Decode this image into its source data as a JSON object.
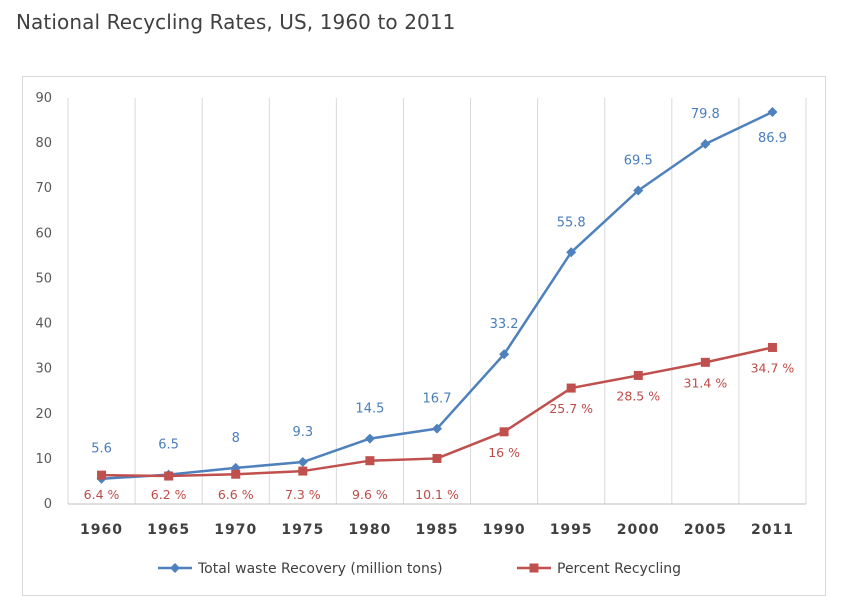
{
  "chart_data": {
    "type": "line",
    "title": "National Recycling Rates, US, 1960 to 2011",
    "categories": [
      "1960",
      "1965",
      "1970",
      "1975",
      "1980",
      "1985",
      "1990",
      "1995",
      "2000",
      "2005",
      "2011"
    ],
    "ylim": [
      0,
      90
    ],
    "yticks": [
      0,
      10,
      20,
      30,
      40,
      50,
      60,
      70,
      80,
      90
    ],
    "grid": "vertical",
    "legend": "bottom",
    "series": [
      {
        "name": "Total waste Recovery (million tons)",
        "color": "#4f81bd",
        "marker": "diamond",
        "values": [
          5.6,
          6.5,
          8,
          9.3,
          14.5,
          16.7,
          33.2,
          55.8,
          69.5,
          79.8,
          86.9
        ],
        "labels": [
          "5.6",
          "6.5",
          "8",
          "9.3",
          "14.5",
          "16.7",
          "33.2",
          "55.8",
          "69.5",
          "79.8",
          "86.9"
        ]
      },
      {
        "name": "Percent Recycling",
        "color": "#c0504d",
        "marker": "square",
        "values": [
          6.4,
          6.2,
          6.6,
          7.3,
          9.6,
          10.1,
          16,
          25.7,
          28.5,
          31.4,
          34.7
        ],
        "labels": [
          "6.4 %",
          "6.2 %",
          "6.6 %",
          "7.3 %",
          "9.6 %",
          "10.1 %",
          "16 %",
          "25.7 %",
          "28.5 %",
          "31.4 %",
          "34.7 %"
        ]
      }
    ]
  }
}
